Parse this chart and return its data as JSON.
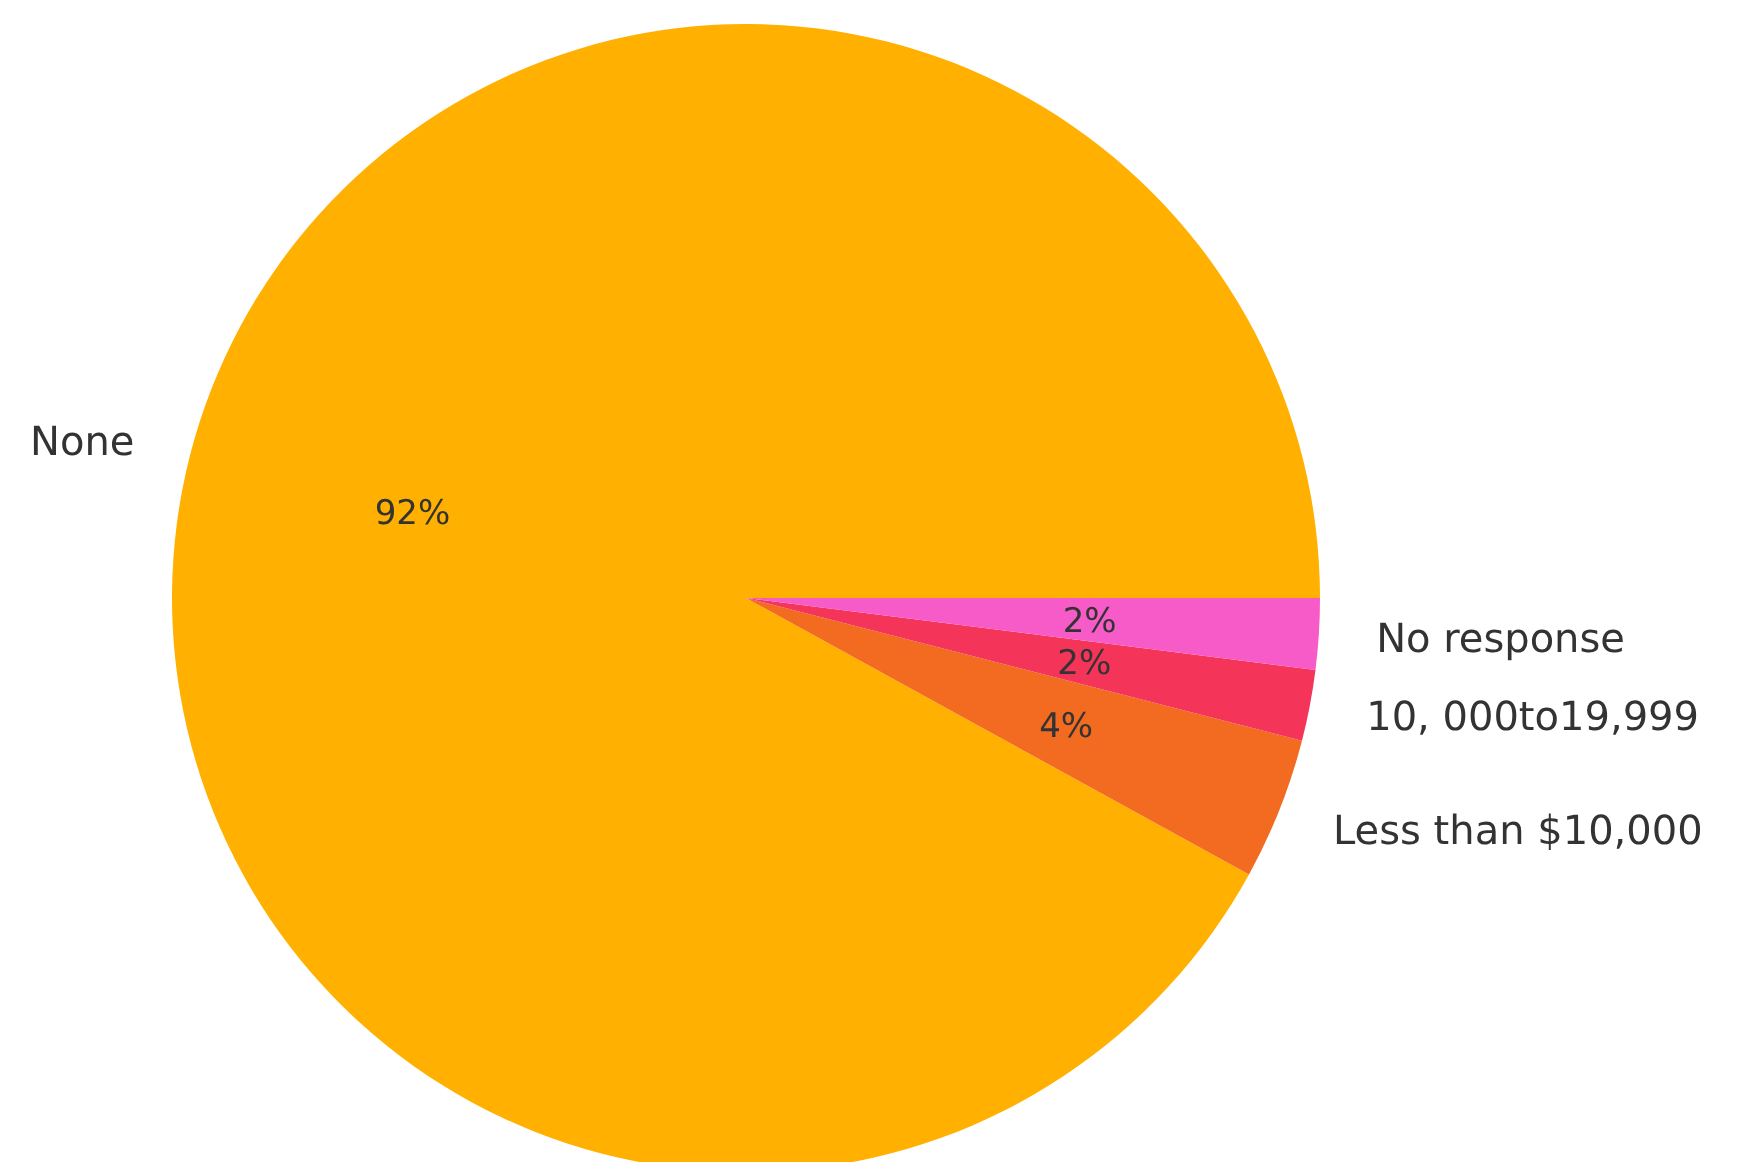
{
  "chart_data": {
    "type": "pie",
    "categories": [
      "None",
      "Less than $10,000",
      "10, 000to19,999",
      "No response"
    ],
    "values": [
      92,
      4,
      2,
      2
    ],
    "colors": [
      "#ffb000",
      "#f26b21",
      "#f5345a",
      "#f75bc8"
    ],
    "value_labels": [
      "92%",
      "4%",
      "2%",
      "2%"
    ]
  }
}
